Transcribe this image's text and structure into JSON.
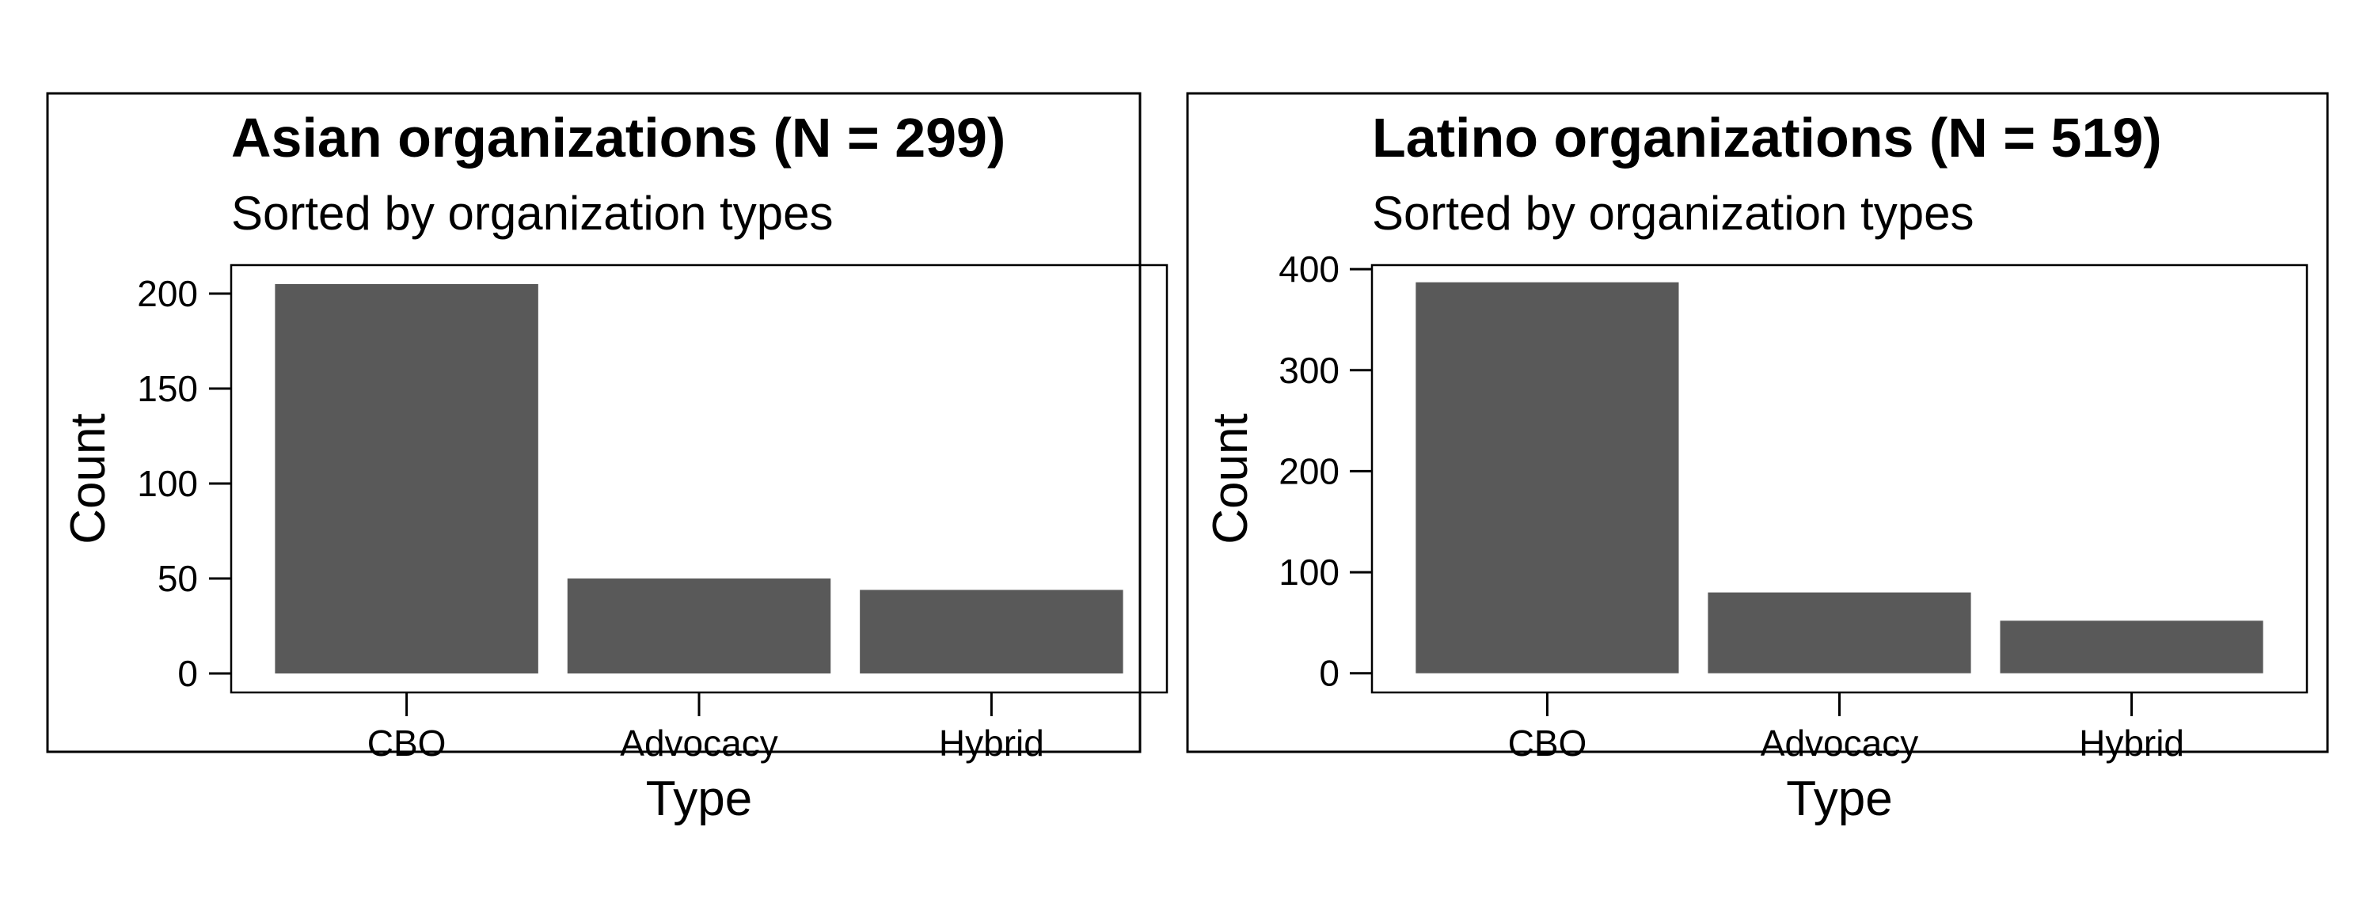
{
  "chart_data": [
    {
      "type": "bar",
      "title": "Asian organizations (N = 299)",
      "subtitle": "Sorted by organization types",
      "xlabel": "Type",
      "ylabel": "Count",
      "categories": [
        "CBO",
        "Advocacy",
        "Hybrid"
      ],
      "values": [
        205,
        50,
        44
      ],
      "ylim": [
        -10,
        215
      ],
      "yticks": [
        0,
        50,
        100,
        150,
        200
      ],
      "bar_color": "#595959",
      "grid": false,
      "legend": "none"
    },
    {
      "type": "bar",
      "title": "Latino organizations (N = 519)",
      "subtitle": "Sorted by organization types",
      "xlabel": "Type",
      "ylabel": "Count",
      "categories": [
        "CBO",
        "Advocacy",
        "Hybrid"
      ],
      "values": [
        387,
        80,
        52
      ],
      "ylim": [
        -19,
        404
      ],
      "yticks": [
        0,
        100,
        200,
        300,
        400
      ],
      "bar_color": "#595959",
      "grid": false,
      "legend": "none"
    }
  ]
}
